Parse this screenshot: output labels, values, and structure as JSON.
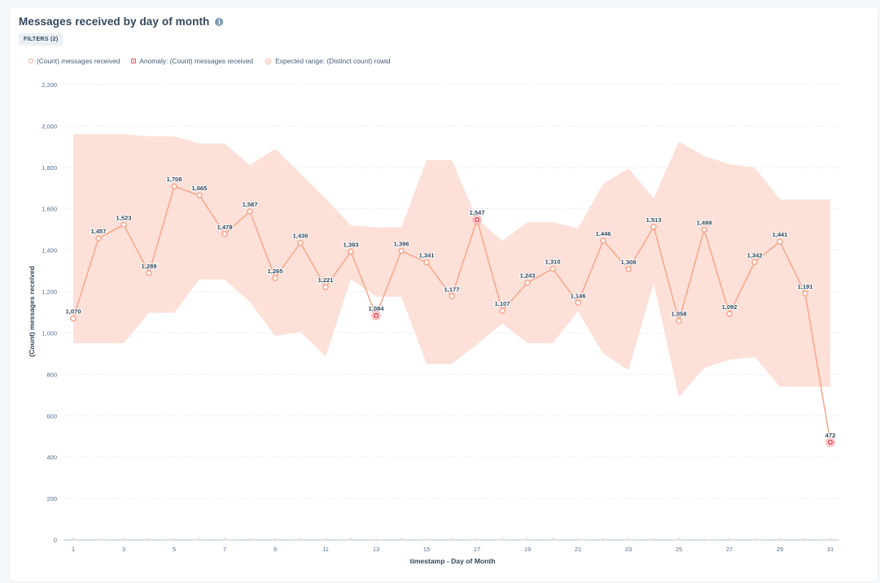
{
  "card": {
    "title": "Messages received by day of month",
    "info_icon": "info-circle-icon",
    "filters_label": "FILTERS (2)"
  },
  "legend": [
    {
      "label": "(Count) messages received",
      "icon": "hollow-circle-icon"
    },
    {
      "label": "Anomaly: (Count) messages received",
      "icon": "anomaly-marker-icon"
    },
    {
      "label": "Expected range: (Distinct count) rowid",
      "icon": "filled-circle-icon"
    }
  ],
  "colors": {
    "line": "#f8a68a",
    "range": "#fde0d8",
    "anomaly": "#f2545b",
    "grid": "#e5eaf0",
    "axis": "#cbd6e2"
  },
  "chart_data": {
    "type": "line",
    "title": "Messages received by day of month",
    "xlabel": "timestamp - Day of Month",
    "ylabel": "(Count) messages received",
    "ylim": [
      0,
      2200
    ],
    "yticks": [
      0,
      200,
      400,
      600,
      800,
      1000,
      1200,
      1400,
      1600,
      1800,
      2000,
      2200
    ],
    "ytick_labels": [
      "0",
      "200",
      "400",
      "600",
      "800",
      "1,000",
      "1,200",
      "1,400",
      "1,600",
      "1,800",
      "2,000",
      "2,200"
    ],
    "xlim": [
      1,
      31
    ],
    "xticks": [
      1,
      3,
      5,
      7,
      9,
      11,
      13,
      15,
      17,
      19,
      21,
      23,
      25,
      27,
      29,
      31
    ],
    "grid": true,
    "legend_position": "top-left",
    "x": [
      1,
      2,
      3,
      4,
      5,
      6,
      7,
      8,
      9,
      10,
      11,
      12,
      13,
      14,
      15,
      16,
      17,
      18,
      19,
      20,
      21,
      22,
      23,
      24,
      25,
      26,
      27,
      28,
      29,
      30,
      31
    ],
    "series": [
      {
        "name": "(Count) messages received",
        "values": [
          1070,
          1457,
          1523,
          1289,
          1708,
          1665,
          1478,
          1587,
          1265,
          1436,
          1221,
          1393,
          1084,
          1396,
          1341,
          1177,
          1547,
          1107,
          1243,
          1310,
          1146,
          1446,
          1308,
          1513,
          1058,
          1499,
          1092,
          1342,
          1441,
          1191,
          472
        ],
        "labels": [
          "1,070",
          "1,457",
          "1,523",
          "1,289",
          "1,708",
          "1,665",
          "1,478",
          "1,587",
          "1,265",
          "1,436",
          "1,221",
          "1,393",
          "1,084",
          "1,396",
          "1,341",
          "1,177",
          "1,547",
          "1,107",
          "1,243",
          "1,310",
          "1,146",
          "1,446",
          "1,308",
          "1,513",
          "1,058",
          "1,499",
          "1,092",
          "1,342",
          "1,441",
          "1,191",
          "472"
        ]
      }
    ],
    "anomalies": [
      13,
      17,
      31
    ],
    "expected_range": {
      "name": "Expected range: (Distinct count) rowid",
      "upper": [
        1960,
        1960,
        1960,
        1950,
        1950,
        1915,
        1915,
        1810,
        1890,
        1770,
        1650,
        1520,
        1510,
        1510,
        1835,
        1835,
        1550,
        1445,
        1535,
        1535,
        1505,
        1720,
        1795,
        1650,
        1925,
        1855,
        1815,
        1800,
        1645,
        1645,
        1645
      ],
      "lower": [
        950,
        950,
        950,
        1097,
        1097,
        1258,
        1258,
        1150,
        985,
        1005,
        885,
        1260,
        1175,
        1175,
        850,
        850,
        945,
        1045,
        950,
        950,
        1105,
        900,
        820,
        1240,
        690,
        830,
        870,
        885,
        740,
        740,
        740
      ]
    }
  }
}
